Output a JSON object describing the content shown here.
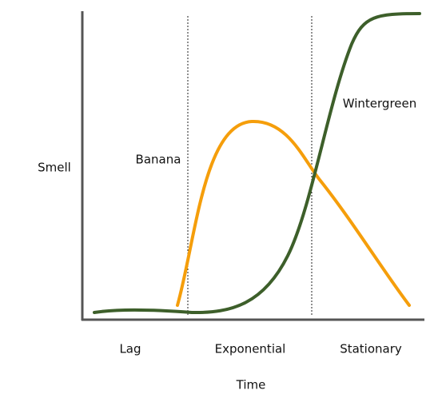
{
  "y_axis_label": "Smell",
  "x_axis_label": "Time",
  "phases": [
    "Lag",
    "Exponential",
    "Stationary"
  ],
  "curves": [
    {
      "label": "Banana",
      "color": "#f59e0b"
    },
    {
      "label": "Wintergreen",
      "color": "#3d5f2a"
    }
  ]
}
